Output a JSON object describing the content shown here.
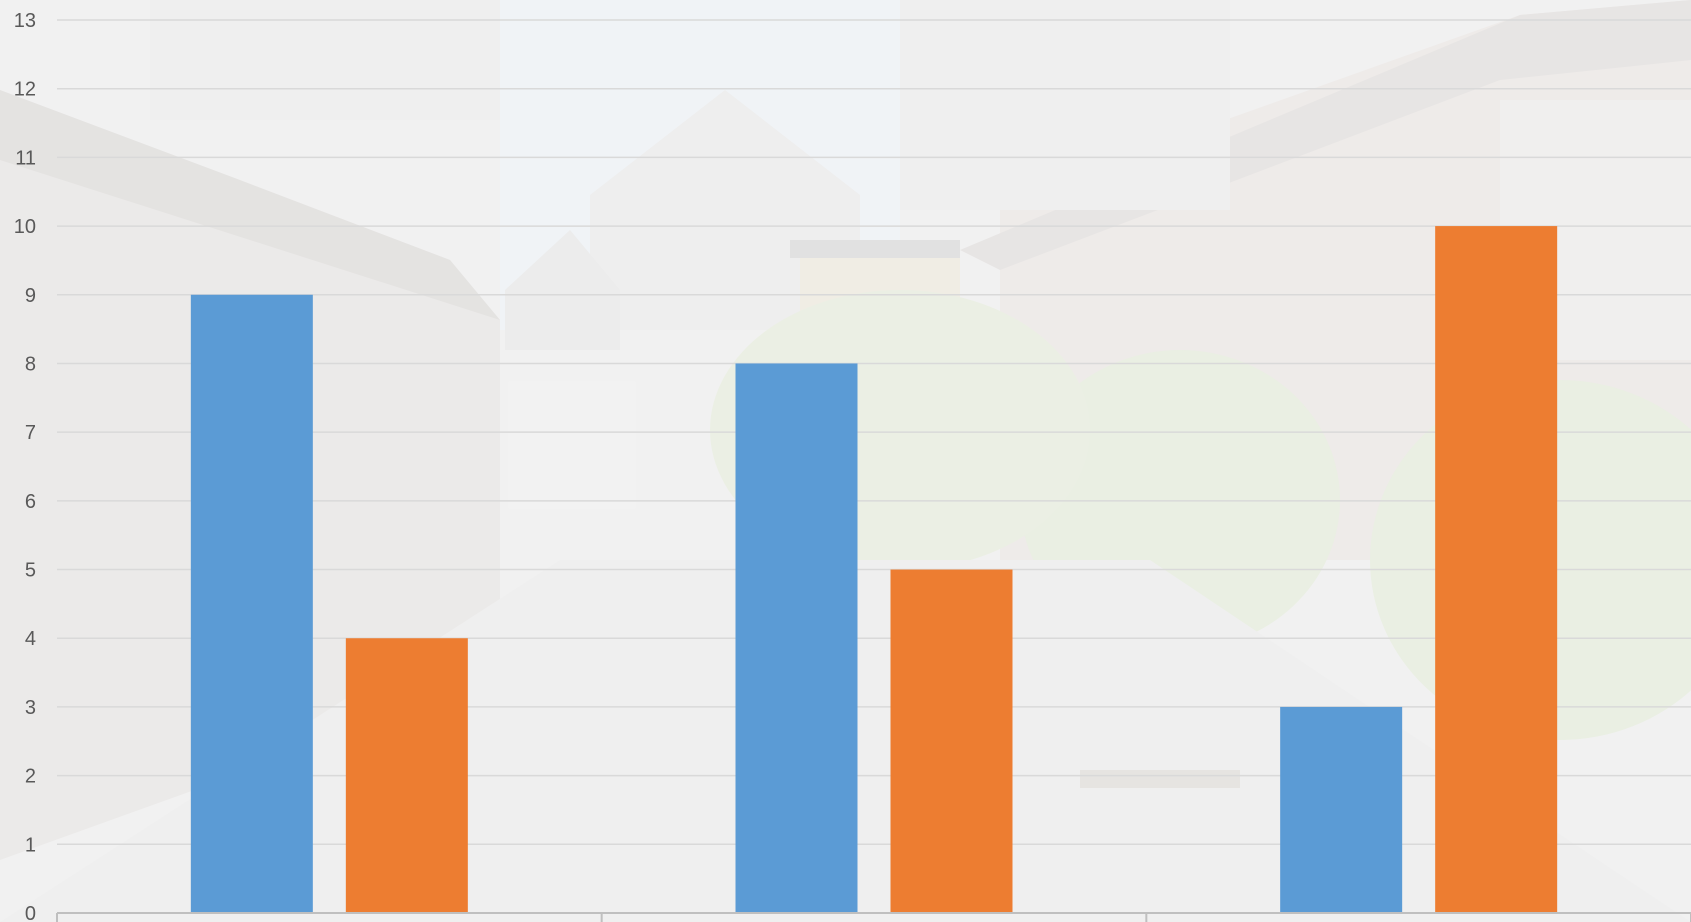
{
  "chart_data": {
    "type": "bar",
    "title": "",
    "xlabel": "",
    "ylabel": "",
    "categories": [
      "",
      "",
      ""
    ],
    "series": [
      {
        "color": "#5b9bd5",
        "values": [
          9,
          8,
          3
        ]
      },
      {
        "color": "#ed7d31",
        "values": [
          4,
          5,
          10
        ]
      }
    ],
    "ylim": [
      0,
      13
    ],
    "yticks": [
      "0",
      "1",
      "2",
      "3",
      "4",
      "5",
      "6",
      "7",
      "8",
      "9",
      "10",
      "11",
      "12",
      "13"
    ],
    "grid": true,
    "legend": "none",
    "gridline_color": "#d9d9d9",
    "axis_color": "#bfbfbf"
  }
}
